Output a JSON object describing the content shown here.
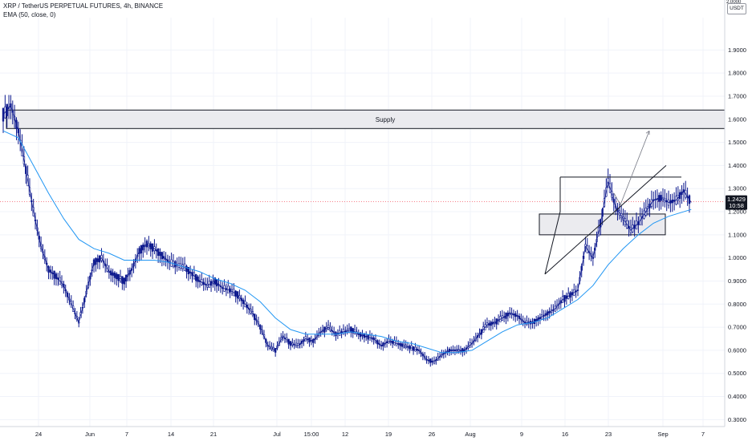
{
  "header": {
    "symbol_line": "XRP / TetherUS PERPETUAL FUTURES, 4h, BINANCE",
    "indicator_line": "EMA (50, close, 0)"
  },
  "price_scale": {
    "unit": "USDT",
    "top_value": "2.0000",
    "last_price": "1.2429",
    "countdown": "10:58"
  },
  "chart_data": {
    "type": "line",
    "title": "XRP / TetherUS PERPETUAL FUTURES, 4h, BINANCE",
    "ylabel": "USDT",
    "ylim": [
      0.27,
      2.04
    ],
    "y_ticks": [
      "1.9000",
      "1.8000",
      "1.7000",
      "1.6000",
      "1.5000",
      "1.4000",
      "1.3000",
      "1.2000",
      "1.1000",
      "1.0000",
      "0.9000",
      "0.8000",
      "0.7000",
      "0.6000",
      "0.5000",
      "0.4000",
      "0.3000"
    ],
    "x_ticks": [
      "24",
      "Jun",
      "7",
      "14",
      "21",
      "Jul",
      "15:00",
      "12",
      "19",
      "26",
      "Aug",
      "9",
      "16",
      "23",
      "Sep",
      "7"
    ],
    "grid": true,
    "series": [
      {
        "name": "XRP/USDT 4h close",
        "color": "#0e1a8e",
        "points": [
          [
            0,
            1.62
          ],
          [
            2,
            1.66
          ],
          [
            4,
            1.55
          ],
          [
            6,
            1.38
          ],
          [
            8,
            1.2
          ],
          [
            10,
            1.05
          ],
          [
            12,
            0.95
          ],
          [
            14,
            0.92
          ],
          [
            16,
            0.88
          ],
          [
            18,
            0.8
          ],
          [
            20,
            0.72
          ],
          [
            22,
            0.85
          ],
          [
            24,
            0.98
          ],
          [
            26,
            1.0
          ],
          [
            28,
            0.94
          ],
          [
            30,
            0.92
          ],
          [
            32,
            0.9
          ],
          [
            34,
            0.95
          ],
          [
            36,
            1.03
          ],
          [
            38,
            1.06
          ],
          [
            40,
            1.04
          ],
          [
            42,
            1.01
          ],
          [
            44,
            0.98
          ],
          [
            46,
            0.97
          ],
          [
            48,
            0.96
          ],
          [
            50,
            0.93
          ],
          [
            52,
            0.9
          ],
          [
            54,
            0.88
          ],
          [
            56,
            0.9
          ],
          [
            58,
            0.87
          ],
          [
            60,
            0.86
          ],
          [
            62,
            0.84
          ],
          [
            64,
            0.8
          ],
          [
            66,
            0.76
          ],
          [
            68,
            0.7
          ],
          [
            70,
            0.62
          ],
          [
            72,
            0.6
          ],
          [
            74,
            0.66
          ],
          [
            76,
            0.63
          ],
          [
            78,
            0.62
          ],
          [
            80,
            0.65
          ],
          [
            82,
            0.64
          ],
          [
            84,
            0.68
          ],
          [
            86,
            0.7
          ],
          [
            88,
            0.67
          ],
          [
            90,
            0.68
          ],
          [
            92,
            0.69
          ],
          [
            94,
            0.67
          ],
          [
            96,
            0.66
          ],
          [
            98,
            0.65
          ],
          [
            100,
            0.62
          ],
          [
            102,
            0.64
          ],
          [
            104,
            0.63
          ],
          [
            106,
            0.62
          ],
          [
            108,
            0.61
          ],
          [
            110,
            0.6
          ],
          [
            112,
            0.56
          ],
          [
            114,
            0.55
          ],
          [
            116,
            0.58
          ],
          [
            118,
            0.6
          ],
          [
            120,
            0.6
          ],
          [
            122,
            0.6
          ],
          [
            124,
            0.63
          ],
          [
            126,
            0.67
          ],
          [
            128,
            0.71
          ],
          [
            130,
            0.72
          ],
          [
            132,
            0.74
          ],
          [
            134,
            0.76
          ],
          [
            136,
            0.75
          ],
          [
            138,
            0.72
          ],
          [
            140,
            0.72
          ],
          [
            142,
            0.74
          ],
          [
            144,
            0.76
          ],
          [
            146,
            0.78
          ],
          [
            148,
            0.82
          ],
          [
            150,
            0.84
          ],
          [
            152,
            0.86
          ],
          [
            154,
            1.05
          ],
          [
            156,
            1.0
          ],
          [
            158,
            1.15
          ],
          [
            160,
            1.33
          ],
          [
            162,
            1.22
          ],
          [
            164,
            1.17
          ],
          [
            166,
            1.12
          ],
          [
            168,
            1.15
          ],
          [
            170,
            1.2
          ],
          [
            172,
            1.25
          ],
          [
            174,
            1.26
          ],
          [
            176,
            1.24
          ],
          [
            178,
            1.25
          ],
          [
            180,
            1.29
          ],
          [
            182,
            1.24
          ]
        ]
      },
      {
        "name": "EMA (50, close, 0)",
        "color": "#2196f3",
        "points": [
          [
            0,
            1.55
          ],
          [
            4,
            1.52
          ],
          [
            8,
            1.4
          ],
          [
            12,
            1.28
          ],
          [
            16,
            1.17
          ],
          [
            20,
            1.08
          ],
          [
            24,
            1.04
          ],
          [
            28,
            1.02
          ],
          [
            32,
            0.99
          ],
          [
            36,
            0.99
          ],
          [
            40,
            0.99
          ],
          [
            44,
            0.98
          ],
          [
            48,
            0.96
          ],
          [
            52,
            0.94
          ],
          [
            56,
            0.91
          ],
          [
            60,
            0.89
          ],
          [
            64,
            0.86
          ],
          [
            68,
            0.81
          ],
          [
            72,
            0.74
          ],
          [
            76,
            0.69
          ],
          [
            80,
            0.67
          ],
          [
            84,
            0.67
          ],
          [
            88,
            0.67
          ],
          [
            92,
            0.68
          ],
          [
            96,
            0.67
          ],
          [
            100,
            0.66
          ],
          [
            104,
            0.64
          ],
          [
            108,
            0.63
          ],
          [
            112,
            0.61
          ],
          [
            116,
            0.59
          ],
          [
            120,
            0.59
          ],
          [
            124,
            0.6
          ],
          [
            128,
            0.64
          ],
          [
            132,
            0.68
          ],
          [
            136,
            0.71
          ],
          [
            140,
            0.72
          ],
          [
            144,
            0.74
          ],
          [
            148,
            0.78
          ],
          [
            152,
            0.82
          ],
          [
            156,
            0.88
          ],
          [
            160,
            0.97
          ],
          [
            164,
            1.04
          ],
          [
            168,
            1.1
          ],
          [
            172,
            1.15
          ],
          [
            176,
            1.18
          ],
          [
            182,
            1.21
          ]
        ]
      }
    ],
    "annotations": {
      "supply_zone": {
        "label": "Supply",
        "from": 1.56,
        "to": 1.64
      },
      "demand_zone": {
        "from": 1.1,
        "to": 1.19
      },
      "last_price_line": 1.2429,
      "resistance_line": 1.35
    }
  },
  "colors": {
    "candle": "#0e1a8e",
    "ema": "#2196f3",
    "zone_fill": "#ebebef",
    "zone_border": "#131722",
    "price_line": "#f23645",
    "badge": "#131722",
    "grid": "#f0f3fa"
  }
}
